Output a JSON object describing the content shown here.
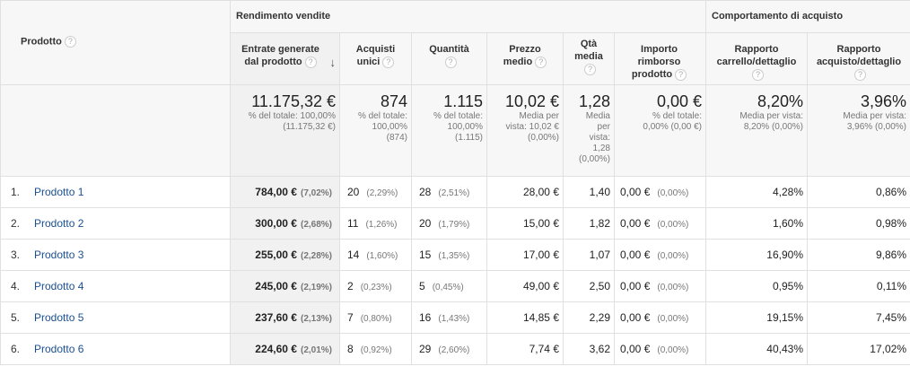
{
  "groups": {
    "sales": "Rendimento vendite",
    "shopping": "Comportamento di acquisto"
  },
  "product_header": "Prodotto",
  "columns": [
    "Entrate generate dal prodotto",
    "Acquisti unici",
    "Quantità",
    "Prezzo medio",
    "Qtà media",
    "Importo rimborso prodotto",
    "Rapporto carrello/dettaglio",
    "Rapporto acquisto/dettaglio"
  ],
  "totals": [
    {
      "big": "11.175,32 €",
      "sub": [
        "% del totale: 100,00%",
        "(11.175,32 €)"
      ]
    },
    {
      "big": "874",
      "sub": [
        "% del totale:",
        "100,00%",
        "(874)"
      ]
    },
    {
      "big": "1.115",
      "sub": [
        "% del totale:",
        "100,00%",
        "(1.115)"
      ]
    },
    {
      "big": "10,02 €",
      "sub": [
        "Media per",
        "vista: 10,02 €",
        "(0,00%)"
      ]
    },
    {
      "big": "1,28",
      "sub": [
        "Media",
        "per",
        "vista:",
        "1,28",
        "(0,00%)"
      ]
    },
    {
      "big": "0,00 €",
      "sub": [
        "% del totale:",
        "0,00% (0,00 €)"
      ]
    },
    {
      "big": "8,20%",
      "sub": [
        "Media per vista:",
        "8,20% (0,00%)"
      ]
    },
    {
      "big": "3,96%",
      "sub": [
        "Media per vista:",
        "3,96% (0,00%)"
      ]
    }
  ],
  "rows": [
    {
      "idx": "1.",
      "name": "Prodotto 1",
      "revenue": "784,00 €",
      "revenue_pct": "(7,02%)",
      "unique": "20",
      "unique_pct": "(2,29%)",
      "qty": "28",
      "qty_pct": "(2,51%)",
      "price": "28,00 €",
      "avg_qty": "1,40",
      "refund": "0,00 €",
      "refund_pct": "(0,00%)",
      "cart": "4,28%",
      "buy": "0,86%"
    },
    {
      "idx": "2.",
      "name": "Prodotto 2",
      "revenue": "300,00 €",
      "revenue_pct": "(2,68%)",
      "unique": "11",
      "unique_pct": "(1,26%)",
      "qty": "20",
      "qty_pct": "(1,79%)",
      "price": "15,00 €",
      "avg_qty": "1,82",
      "refund": "0,00 €",
      "refund_pct": "(0,00%)",
      "cart": "1,60%",
      "buy": "0,98%"
    },
    {
      "idx": "3.",
      "name": "Prodotto 3",
      "revenue": "255,00 €",
      "revenue_pct": "(2,28%)",
      "unique": "14",
      "unique_pct": "(1,60%)",
      "qty": "15",
      "qty_pct": "(1,35%)",
      "price": "17,00 €",
      "avg_qty": "1,07",
      "refund": "0,00 €",
      "refund_pct": "(0,00%)",
      "cart": "16,90%",
      "buy": "9,86%"
    },
    {
      "idx": "4.",
      "name": "Prodotto 4",
      "revenue": "245,00 €",
      "revenue_pct": "(2,19%)",
      "unique": "2",
      "unique_pct": "(0,23%)",
      "qty": "5",
      "qty_pct": "(0,45%)",
      "price": "49,00 €",
      "avg_qty": "2,50",
      "refund": "0,00 €",
      "refund_pct": "(0,00%)",
      "cart": "0,95%",
      "buy": "0,11%"
    },
    {
      "idx": "5.",
      "name": "Prodotto 5",
      "revenue": "237,60 €",
      "revenue_pct": "(2,13%)",
      "unique": "7",
      "unique_pct": "(0,80%)",
      "qty": "16",
      "qty_pct": "(1,43%)",
      "price": "14,85 €",
      "avg_qty": "2,29",
      "refund": "0,00 €",
      "refund_pct": "(0,00%)",
      "cart": "19,15%",
      "buy": "7,45%"
    },
    {
      "idx": "6.",
      "name": "Prodotto 6",
      "revenue": "224,60 €",
      "revenue_pct": "(2,01%)",
      "unique": "8",
      "unique_pct": "(0,92%)",
      "qty": "29",
      "qty_pct": "(2,60%)",
      "price": "7,74 €",
      "avg_qty": "3,62",
      "refund": "0,00 €",
      "refund_pct": "(0,00%)",
      "cart": "40,43%",
      "buy": "17,02%"
    }
  ],
  "icons": {
    "help": "help-circle-icon",
    "sort": "sort-down-arrow-icon"
  },
  "colors": {
    "link": "#1a4f8f",
    "header_bg": "#f7f7f7",
    "selected_bg": "#f1f1f1"
  }
}
